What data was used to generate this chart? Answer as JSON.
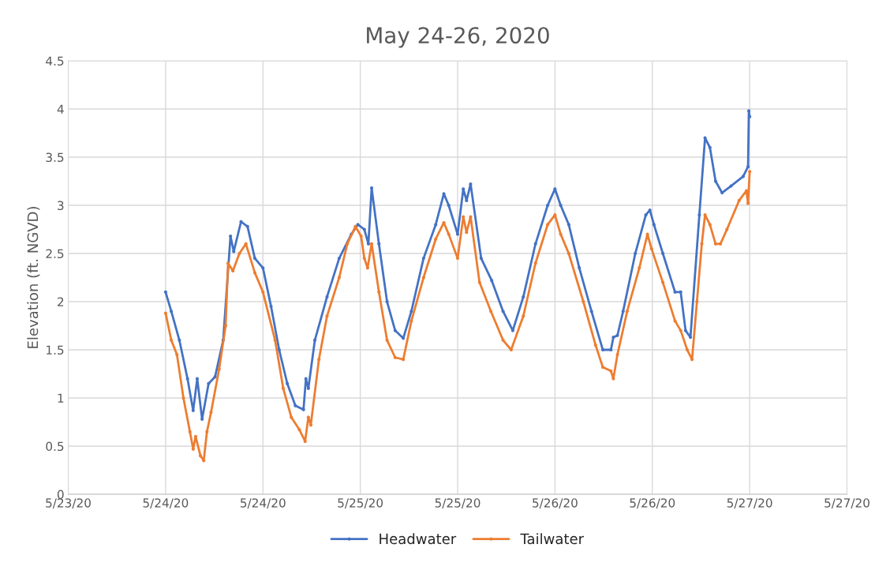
{
  "chart_data": {
    "type": "line",
    "title": "May 24-26, 2020",
    "ylabel": "Elevation (ft. NGVD)",
    "xlim": [
      "2020-05-23T12:00",
      "2020-05-27T12:00"
    ],
    "xticks": [
      {
        "value": "2020-05-23T12:00",
        "label": "5/23/20"
      },
      {
        "value": "2020-05-24T00:00",
        "label": "5/24/20"
      },
      {
        "value": "2020-05-24T12:00",
        "label": "5/24/20"
      },
      {
        "value": "2020-05-25T00:00",
        "label": "5/25/20"
      },
      {
        "value": "2020-05-25T12:00",
        "label": "5/25/20"
      },
      {
        "value": "2020-05-26T00:00",
        "label": "5/26/20"
      },
      {
        "value": "2020-05-26T12:00",
        "label": "5/26/20"
      },
      {
        "value": "2020-05-27T00:00",
        "label": "5/27/20"
      },
      {
        "value": "2020-05-27T12:00",
        "label": "5/27/20"
      }
    ],
    "ylim": [
      0,
      4.5
    ],
    "yticks": [
      0,
      0.5,
      1,
      1.5,
      2,
      2.5,
      3,
      3.5,
      4,
      4.5
    ],
    "grid": true,
    "legend": "bottom",
    "marker": "circle",
    "line_style": "solid",
    "series": [
      {
        "name": "Headwater",
        "color": "#4472c4",
        "x": [
          "2020-05-24T00:00",
          "2020-05-24T00:42",
          "2020-05-24T01:42",
          "2020-05-24T02:42",
          "2020-05-24T03:24",
          "2020-05-24T03:54",
          "2020-05-24T04:30",
          "2020-05-24T05:18",
          "2020-05-24T06:06",
          "2020-05-24T07:06",
          "2020-05-24T08:00",
          "2020-05-24T08:24",
          "2020-05-24T09:18",
          "2020-05-24T10:06",
          "2020-05-24T11:00",
          "2020-05-24T12:00",
          "2020-05-24T13:00",
          "2020-05-24T14:00",
          "2020-05-24T15:00",
          "2020-05-24T16:00",
          "2020-05-24T17:00",
          "2020-05-24T17:18",
          "2020-05-24T17:36",
          "2020-05-24T18:24",
          "2020-05-24T19:54",
          "2020-05-24T21:24",
          "2020-05-24T22:54",
          "2020-05-24T23:42",
          "2020-05-25T00:30",
          "2020-05-25T01:00",
          "2020-05-25T01:24",
          "2020-05-25T02:18",
          "2020-05-25T03:18",
          "2020-05-25T04:18",
          "2020-05-25T05:18",
          "2020-05-25T06:18",
          "2020-05-25T07:48",
          "2020-05-25T09:18",
          "2020-05-25T10:18",
          "2020-05-25T10:54",
          "2020-05-25T12:00",
          "2020-05-25T12:42",
          "2020-05-25T13:06",
          "2020-05-25T13:36",
          "2020-05-25T14:54",
          "2020-05-25T16:12",
          "2020-05-25T17:36",
          "2020-05-25T18:48",
          "2020-05-25T20:06",
          "2020-05-25T21:36",
          "2020-05-25T23:06",
          "2020-05-26T00:00",
          "2020-05-26T00:42",
          "2020-05-26T01:42",
          "2020-05-26T03:00",
          "2020-05-26T04:30",
          "2020-05-26T05:54",
          "2020-05-26T06:54",
          "2020-05-26T07:12",
          "2020-05-26T07:42",
          "2020-05-26T08:24",
          "2020-05-26T09:54",
          "2020-05-26T11:12",
          "2020-05-26T11:42",
          "2020-05-26T12:12",
          "2020-05-26T13:18",
          "2020-05-26T14:48",
          "2020-05-26T15:30",
          "2020-05-26T16:06",
          "2020-05-26T16:42",
          "2020-05-26T17:48",
          "2020-05-26T18:30",
          "2020-05-26T19:06",
          "2020-05-26T19:48",
          "2020-05-26T20:36",
          "2020-05-26T21:42",
          "2020-05-26T23:12",
          "2020-05-26T23:48",
          "2020-05-26T23:54",
          "2020-05-27T00:00"
        ],
        "values": [
          2.1,
          1.9,
          1.6,
          1.2,
          0.87,
          1.2,
          0.78,
          1.15,
          1.22,
          1.6,
          2.68,
          2.52,
          2.83,
          2.78,
          2.45,
          2.35,
          1.95,
          1.5,
          1.15,
          0.92,
          0.88,
          1.2,
          1.1,
          1.6,
          2.05,
          2.45,
          2.7,
          2.8,
          2.75,
          2.6,
          3.18,
          2.6,
          2.0,
          1.7,
          1.62,
          1.9,
          2.45,
          2.8,
          3.12,
          3.0,
          2.7,
          3.17,
          3.05,
          3.22,
          2.45,
          2.22,
          1.9,
          1.7,
          2.05,
          2.6,
          3.0,
          3.17,
          3.0,
          2.8,
          2.35,
          1.9,
          1.5,
          1.5,
          1.63,
          1.65,
          1.9,
          2.5,
          2.9,
          2.95,
          2.8,
          2.5,
          2.1,
          2.1,
          1.7,
          1.63,
          2.9,
          3.7,
          3.6,
          3.25,
          3.13,
          3.2,
          3.3,
          3.4,
          3.98,
          3.92
        ]
      },
      {
        "name": "Tailwater",
        "color": "#ed7d31",
        "x": [
          "2020-05-24T00:00",
          "2020-05-24T00:42",
          "2020-05-24T01:24",
          "2020-05-24T02:12",
          "2020-05-24T03:00",
          "2020-05-24T03:24",
          "2020-05-24T03:42",
          "2020-05-24T04:18",
          "2020-05-24T04:42",
          "2020-05-24T05:06",
          "2020-05-24T05:36",
          "2020-05-24T06:36",
          "2020-05-24T07:24",
          "2020-05-24T07:42",
          "2020-05-24T08:18",
          "2020-05-24T09:06",
          "2020-05-24T09:54",
          "2020-05-24T11:00",
          "2020-05-24T12:00",
          "2020-05-24T13:30",
          "2020-05-24T14:30",
          "2020-05-24T15:30",
          "2020-05-24T16:30",
          "2020-05-24T17:12",
          "2020-05-24T17:36",
          "2020-05-24T17:54",
          "2020-05-24T18:54",
          "2020-05-24T19:54",
          "2020-05-24T21:24",
          "2020-05-24T22:24",
          "2020-05-24T23:24",
          "2020-05-25T00:06",
          "2020-05-25T00:30",
          "2020-05-25T00:54",
          "2020-05-25T01:24",
          "2020-05-25T02:18",
          "2020-05-25T03:18",
          "2020-05-25T04:18",
          "2020-05-25T05:18",
          "2020-05-25T06:18",
          "2020-05-25T07:48",
          "2020-05-25T09:18",
          "2020-05-25T10:18",
          "2020-05-25T10:54",
          "2020-05-25T12:00",
          "2020-05-25T12:42",
          "2020-05-25T13:06",
          "2020-05-25T13:36",
          "2020-05-25T14:42",
          "2020-05-25T16:06",
          "2020-05-25T17:36",
          "2020-05-25T18:36",
          "2020-05-25T20:06",
          "2020-05-25T21:36",
          "2020-05-25T23:06",
          "2020-05-26T00:00",
          "2020-05-26T00:42",
          "2020-05-26T01:42",
          "2020-05-26T03:30",
          "2020-05-26T05:00",
          "2020-05-26T05:54",
          "2020-05-26T06:54",
          "2020-05-26T07:12",
          "2020-05-26T07:42",
          "2020-05-26T08:54",
          "2020-05-26T10:24",
          "2020-05-26T11:24",
          "2020-05-26T11:54",
          "2020-05-26T13:18",
          "2020-05-26T14:48",
          "2020-05-26T15:30",
          "2020-05-26T16:18",
          "2020-05-26T16:54",
          "2020-05-26T17:30",
          "2020-05-26T18:06",
          "2020-05-26T18:30",
          "2020-05-26T19:06",
          "2020-05-26T19:48",
          "2020-05-26T20:24",
          "2020-05-26T21:12",
          "2020-05-26T22:42",
          "2020-05-26T23:36",
          "2020-05-26T23:48",
          "2020-05-27T00:00"
        ],
        "values": [
          1.88,
          1.6,
          1.45,
          1.0,
          0.65,
          0.47,
          0.6,
          0.4,
          0.35,
          0.65,
          0.85,
          1.3,
          1.75,
          2.4,
          2.32,
          2.5,
          2.6,
          2.3,
          2.1,
          1.6,
          1.1,
          0.8,
          0.67,
          0.55,
          0.8,
          0.72,
          1.4,
          1.85,
          2.25,
          2.6,
          2.78,
          2.68,
          2.45,
          2.35,
          2.6,
          2.1,
          1.6,
          1.42,
          1.4,
          1.8,
          2.25,
          2.65,
          2.82,
          2.7,
          2.45,
          2.88,
          2.72,
          2.88,
          2.2,
          1.9,
          1.6,
          1.5,
          1.85,
          2.4,
          2.8,
          2.9,
          2.7,
          2.5,
          2.0,
          1.55,
          1.32,
          1.28,
          1.2,
          1.45,
          1.9,
          2.35,
          2.7,
          2.55,
          2.2,
          1.8,
          1.7,
          1.5,
          1.4,
          2.0,
          2.6,
          2.9,
          2.8,
          2.6,
          2.6,
          2.75,
          3.05,
          3.15,
          3.02,
          3.35
        ]
      }
    ]
  }
}
